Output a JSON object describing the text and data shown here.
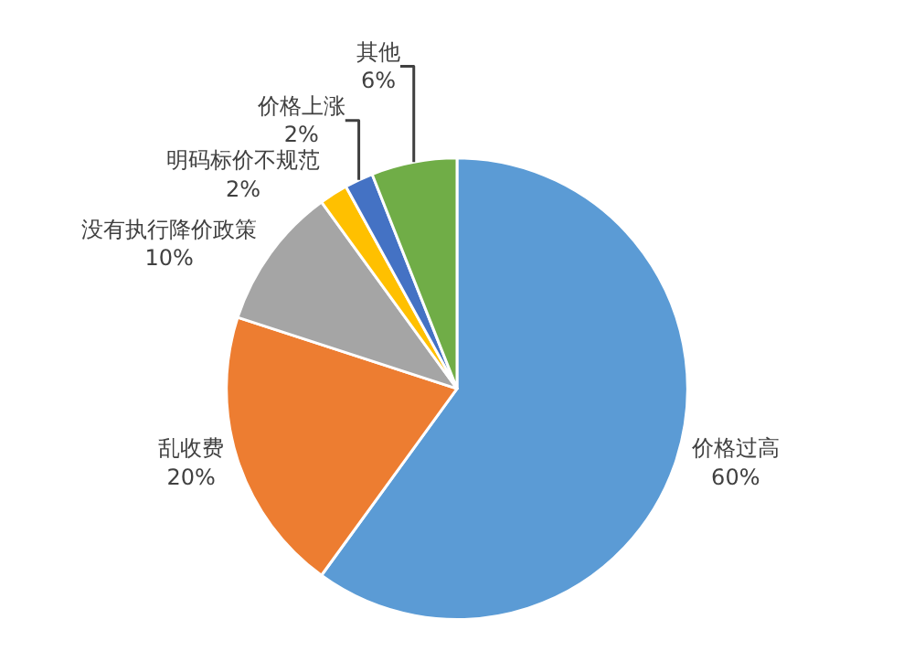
{
  "chart_data": {
    "type": "pie",
    "categories": [
      "价格过高",
      "乱收费",
      "没有执行降价政策",
      "明码标价不规范",
      "价格上涨",
      "其他"
    ],
    "values": [
      60,
      20,
      10,
      2,
      2,
      6
    ],
    "value_labels": [
      "60%",
      "20%",
      "10%",
      "2%",
      "2%",
      "6%"
    ],
    "colors": [
      "#5b9bd5",
      "#ed7d31",
      "#a5a5a5",
      "#ffc000",
      "#4472c4",
      "#70ad47"
    ],
    "legend": false
  }
}
